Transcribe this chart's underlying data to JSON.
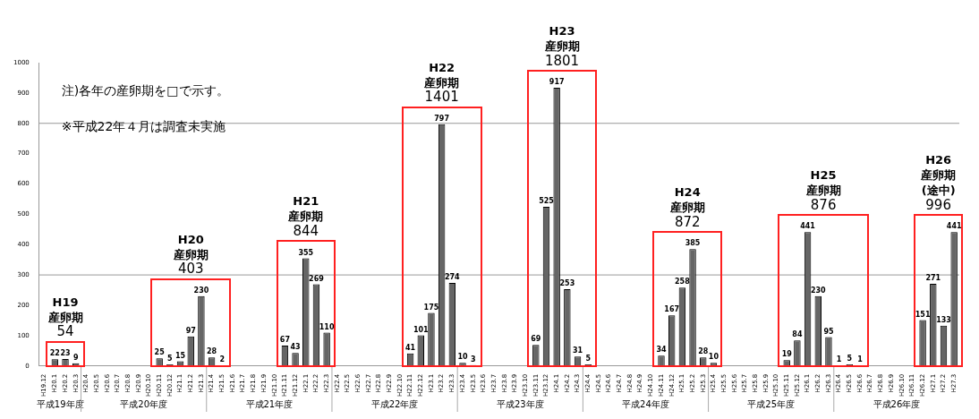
{
  "chart_data": {
    "type": "bar",
    "categories": [
      "H19.12",
      "H20.1",
      "H20.2",
      "H20.3",
      "H20.4",
      "H20.5",
      "H20.6",
      "H20.7",
      "H20.8",
      "H20.9",
      "H20.10",
      "H20.11",
      "H20.12",
      "H21.1",
      "H21.2",
      "H21.3",
      "H21.4",
      "H21.5",
      "H21.6",
      "H21.7",
      "H21.8",
      "H21.9",
      "H21.10",
      "H21.11",
      "H21.12",
      "H22.1",
      "H22.2",
      "H22.3",
      "H22.4",
      "H22.5",
      "H22.6",
      "H22.7",
      "H22.8",
      "H22.9",
      "H22.10",
      "H22.11",
      "H22.12",
      "H23.1",
      "H23.2",
      "H23.3",
      "H23.4",
      "H23.5",
      "H23.6",
      "H23.7",
      "H23.8",
      "H23.9",
      "H23.10",
      "H23.11",
      "H23.12",
      "H24.1",
      "H24.2",
      "H24.3",
      "H24.4",
      "H24.5",
      "H24.6",
      "H24.7",
      "H24.8",
      "H24.9",
      "H24.10",
      "H24.11",
      "H24.12",
      "H25.1",
      "H25.2",
      "H25.3",
      "H25.4",
      "H25.5",
      "H25.6",
      "H25.7",
      "H25.8",
      "H25.9",
      "H25.10",
      "H25.11",
      "H25.12",
      "H26.1",
      "H26.2",
      "H26.3",
      "H26.4",
      "H26.5",
      "H26.6",
      "H26.7",
      "H26.8",
      "H26.9",
      "H26.10",
      "H26.11",
      "H26.12",
      "H27.1",
      "H27.2",
      "H27.3"
    ],
    "values": [
      null,
      22,
      23,
      9,
      null,
      null,
      null,
      null,
      null,
      null,
      null,
      25,
      5,
      15,
      97,
      230,
      28,
      2,
      null,
      null,
      null,
      null,
      null,
      67,
      43,
      355,
      269,
      110,
      null,
      null,
      null,
      null,
      null,
      null,
      null,
      41,
      101,
      175,
      797,
      274,
      10,
      3,
      null,
      null,
      null,
      null,
      null,
      69,
      525,
      917,
      253,
      31,
      5,
      null,
      null,
      null,
      null,
      null,
      null,
      34,
      167,
      258,
      385,
      28,
      10,
      null,
      null,
      null,
      null,
      null,
      null,
      19,
      84,
      441,
      230,
      95,
      1,
      5,
      1,
      null,
      null,
      null,
      null,
      null,
      151,
      271,
      133,
      441
    ],
    "color": "#666666",
    "ylim": [
      0,
      1000
    ],
    "yticks": [
      0,
      100,
      200,
      300,
      400,
      500,
      600,
      700,
      800,
      900,
      1000
    ],
    "grid": false,
    "data_labels": true,
    "ref_lines": [
      {
        "axis": "y",
        "value": 300,
        "color": "#999999"
      },
      {
        "axis": "y",
        "value": 800,
        "color": "#999999"
      }
    ],
    "annotations": [
      "注)各年の産卵期を□で示す。",
      "※平成22年４月は調査未実施",
      "平成19年度",
      "平成20年度",
      "平成21年度",
      "平成22年度",
      "平成23年度",
      "平成24年度",
      "平成25年度",
      "平成26年度",
      {
        "text": "54",
        "x": "H20.2",
        "y": 23
      },
      "H19",
      "産卵期",
      {
        "text": "403",
        "x": "H21.3",
        "y": 230
      },
      "H20",
      "産卵期",
      {
        "text": "844",
        "x": "H22.1",
        "y": 355
      },
      "H21",
      "産卵期",
      {
        "text": "1401",
        "x": "H23.2",
        "y": 797
      },
      "H22",
      "産卵期",
      {
        "text": "1801",
        "x": "H24.1",
        "y": 917
      },
      "H23",
      "産卵期",
      {
        "text": "872",
        "x": "H25.2",
        "y": 385
      },
      "H24",
      "産卵期",
      {
        "text": "876",
        "x": "H26.1",
        "y": 441
      },
      "H25",
      "産卵期",
      {
        "text": "996",
        "x": "H27.3",
        "y": 441
      },
      "H26",
      "産卵期",
      "(途中)"
    ]
  }
}
